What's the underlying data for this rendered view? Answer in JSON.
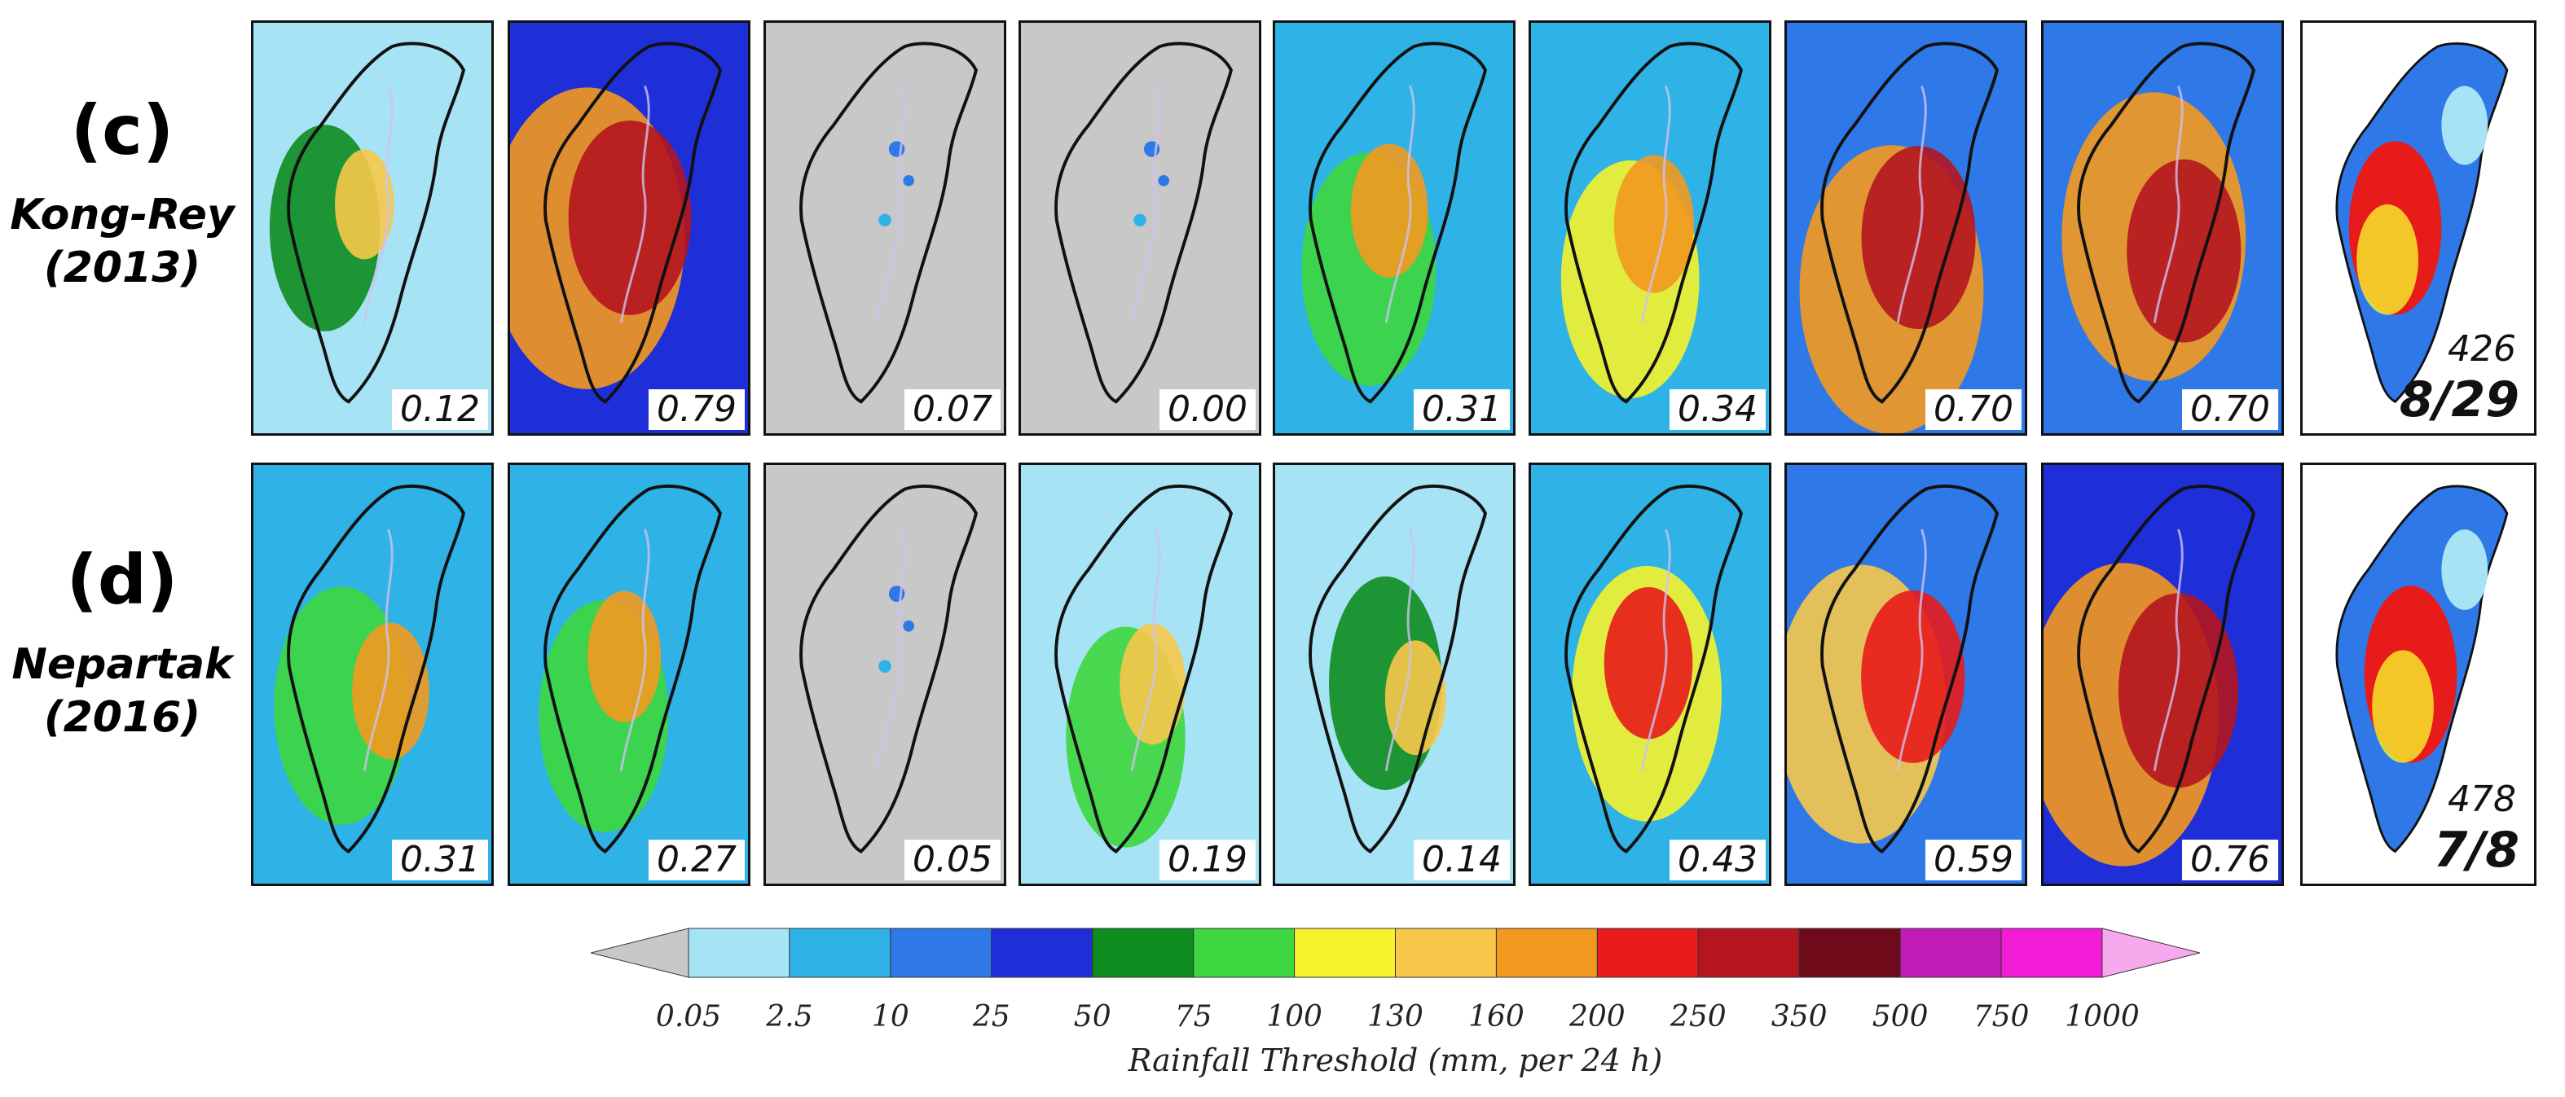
{
  "rows": [
    {
      "tag": "(c)",
      "storm": "Kong-Rey",
      "year": "(2013)",
      "scores": [
        "0.12",
        "0.79",
        "0.07",
        "0.00",
        "0.31",
        "0.34",
        "0.70",
        "0.70"
      ],
      "levels": [
        0.12,
        0.79,
        0.07,
        0.0,
        0.31,
        0.34,
        0.7,
        0.7
      ],
      "obs_total": "426",
      "obs_date": "8/29"
    },
    {
      "tag": "(d)",
      "storm": "Nepartak",
      "year": "(2016)",
      "scores": [
        "0.31",
        "0.27",
        "0.05",
        "0.19",
        "0.14",
        "0.43",
        "0.59",
        "0.76"
      ],
      "levels": [
        0.31,
        0.27,
        0.05,
        0.19,
        0.14,
        0.43,
        0.59,
        0.76
      ],
      "obs_total": "478",
      "obs_date": "7/8"
    }
  ],
  "colorbar": {
    "title": "Rainfall Threshold (mm, per 24 h)",
    "ticks": [
      "0.05",
      "2.5",
      "10",
      "25",
      "50",
      "75",
      "100",
      "130",
      "160",
      "200",
      "250",
      "350",
      "500",
      "750",
      "1000"
    ],
    "colors": [
      "#a6e3f5",
      "#2fb3e6",
      "#2f78e8",
      "#1f2fd8",
      "#0f8c1f",
      "#3ed63e",
      "#f6f22c",
      "#f7c84a",
      "#f3991f",
      "#e81b1b",
      "#b4151e",
      "#6e0a1a",
      "#c21bb8",
      "#f21bd6",
      "#f7a9ee"
    ],
    "under_color": "#c8c8c8"
  }
}
